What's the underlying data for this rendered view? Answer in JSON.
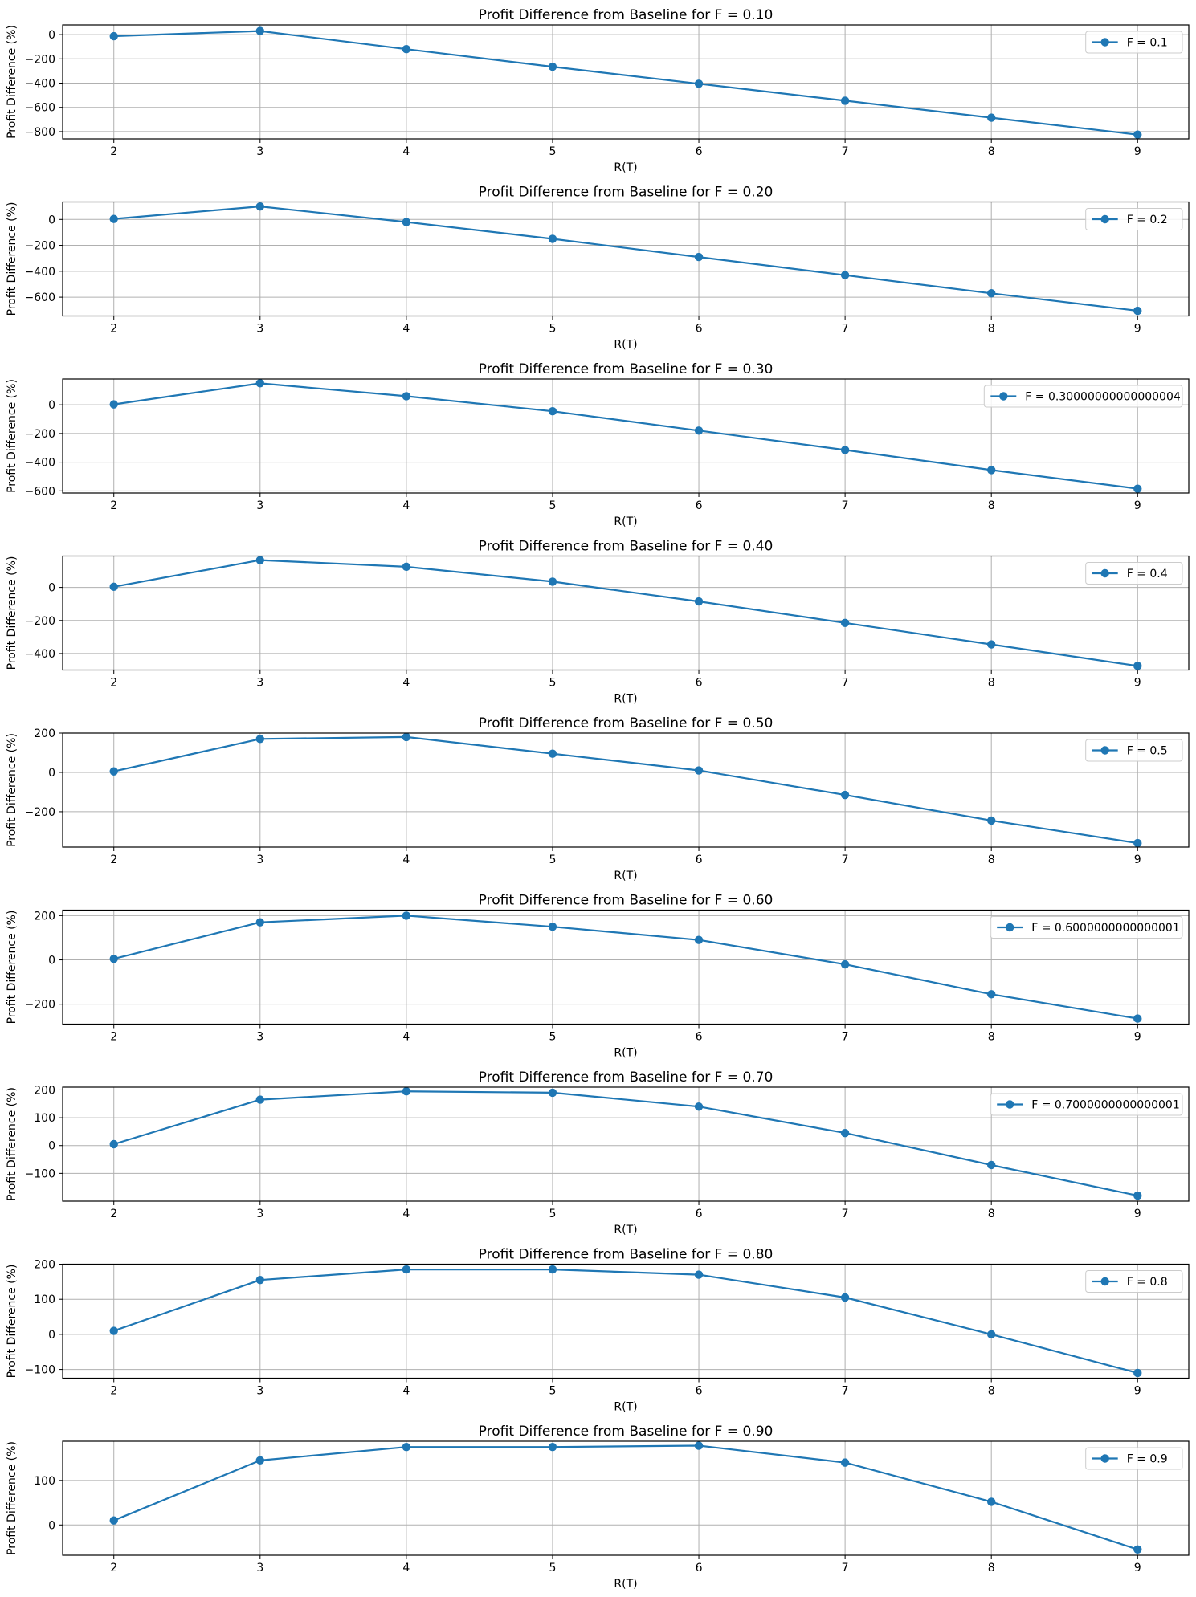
{
  "chart_data": [
    {
      "type": "line",
      "title": "Profit Difference from Baseline for F = 0.10",
      "xlabel": "R(T)",
      "ylabel": "Profit Difference (%)",
      "x": [
        2,
        3,
        4,
        5,
        6,
        7,
        8,
        9
      ],
      "series": [
        {
          "name": "F = 0.1",
          "values": [
            -13,
            30,
            -120,
            -265,
            -405,
            -545,
            -685,
            -825
          ]
        }
      ],
      "ylim": [
        -860,
        80
      ],
      "yticks": [
        -800,
        -600,
        -400,
        -200,
        0
      ],
      "legend": "top-right",
      "grid": true,
      "color": "#1f77b4"
    },
    {
      "type": "line",
      "title": "Profit Difference from Baseline for F = 0.20",
      "xlabel": "R(T)",
      "ylabel": "Profit Difference (%)",
      "x": [
        2,
        3,
        4,
        5,
        6,
        7,
        8,
        9
      ],
      "series": [
        {
          "name": "F = 0.2",
          "values": [
            4,
            100,
            -20,
            -150,
            -290,
            -430,
            -570,
            -705
          ]
        }
      ],
      "ylim": [
        -745,
        135
      ],
      "yticks": [
        -600,
        -400,
        -200,
        0
      ],
      "legend": "top-right",
      "grid": true,
      "color": "#1f77b4"
    },
    {
      "type": "line",
      "title": "Profit Difference from Baseline for F = 0.30",
      "xlabel": "R(T)",
      "ylabel": "Profit Difference (%)",
      "x": [
        2,
        3,
        4,
        5,
        6,
        7,
        8,
        9
      ],
      "series": [
        {
          "name": "F = 0.30000000000000004",
          "values": [
            3,
            150,
            60,
            -45,
            -180,
            -315,
            -455,
            -585
          ]
        }
      ],
      "ylim": [
        -615,
        180
      ],
      "yticks": [
        -600,
        -400,
        -200,
        0
      ],
      "legend": "top-right",
      "grid": true,
      "color": "#1f77b4"
    },
    {
      "type": "line",
      "title": "Profit Difference from Baseline for F = 0.40",
      "xlabel": "R(T)",
      "ylabel": "Profit Difference (%)",
      "x": [
        2,
        3,
        4,
        5,
        6,
        7,
        8,
        9
      ],
      "series": [
        {
          "name": "F = 0.4",
          "values": [
            4,
            165,
            125,
            35,
            -85,
            -215,
            -345,
            -475
          ]
        }
      ],
      "ylim": [
        -500,
        190
      ],
      "yticks": [
        -400,
        -200,
        0
      ],
      "legend": "top-right",
      "grid": true,
      "color": "#1f77b4"
    },
    {
      "type": "line",
      "title": "Profit Difference from Baseline for F = 0.50",
      "xlabel": "R(T)",
      "ylabel": "Profit Difference (%)",
      "x": [
        2,
        3,
        4,
        5,
        6,
        7,
        8,
        9
      ],
      "series": [
        {
          "name": "F = 0.5",
          "values": [
            5,
            170,
            180,
            95,
            10,
            -115,
            -245,
            -360
          ]
        }
      ],
      "ylim": [
        -380,
        200
      ],
      "yticks": [
        -200,
        0,
        200
      ],
      "legend": "top-right",
      "grid": true,
      "color": "#1f77b4"
    },
    {
      "type": "line",
      "title": "Profit Difference from Baseline for F = 0.60",
      "xlabel": "R(T)",
      "ylabel": "Profit Difference (%)",
      "x": [
        2,
        3,
        4,
        5,
        6,
        7,
        8,
        9
      ],
      "series": [
        {
          "name": "F = 0.6000000000000001",
          "values": [
            5,
            170,
            200,
            150,
            90,
            -20,
            -155,
            -265
          ]
        }
      ],
      "ylim": [
        -290,
        225
      ],
      "yticks": [
        -200,
        0,
        200
      ],
      "legend": "top-right",
      "grid": true,
      "color": "#1f77b4"
    },
    {
      "type": "line",
      "title": "Profit Difference from Baseline for F = 0.70",
      "xlabel": "R(T)",
      "ylabel": "Profit Difference (%)",
      "x": [
        2,
        3,
        4,
        5,
        6,
        7,
        8,
        9
      ],
      "series": [
        {
          "name": "F = 0.7000000000000001",
          "values": [
            5,
            165,
            195,
            190,
            140,
            45,
            -70,
            -180
          ]
        }
      ],
      "ylim": [
        -200,
        210
      ],
      "yticks": [
        -100,
        0,
        100,
        200
      ],
      "legend": "top-right",
      "grid": true,
      "color": "#1f77b4"
    },
    {
      "type": "line",
      "title": "Profit Difference from Baseline for F = 0.80",
      "xlabel": "R(T)",
      "ylabel": "Profit Difference (%)",
      "x": [
        2,
        3,
        4,
        5,
        6,
        7,
        8,
        9
      ],
      "series": [
        {
          "name": "F = 0.8",
          "values": [
            10,
            155,
            185,
            185,
            170,
            105,
            0,
            -110
          ]
        }
      ],
      "ylim": [
        -125,
        200
      ],
      "yticks": [
        -100,
        0,
        100,
        200
      ],
      "legend": "top-right",
      "grid": true,
      "color": "#1f77b4"
    },
    {
      "type": "line",
      "title": "Profit Difference from Baseline for F = 0.90",
      "xlabel": "R(T)",
      "ylabel": "Profit Difference (%)",
      "x": [
        2,
        3,
        4,
        5,
        6,
        7,
        8,
        9
      ],
      "series": [
        {
          "name": "F = 0.9",
          "values": [
            10,
            145,
            175,
            175,
            178,
            140,
            52,
            -55
          ]
        }
      ],
      "ylim": [
        -68,
        188
      ],
      "yticks": [
        0,
        100
      ],
      "legend": "top-right",
      "grid": true,
      "color": "#1f77b4"
    }
  ]
}
